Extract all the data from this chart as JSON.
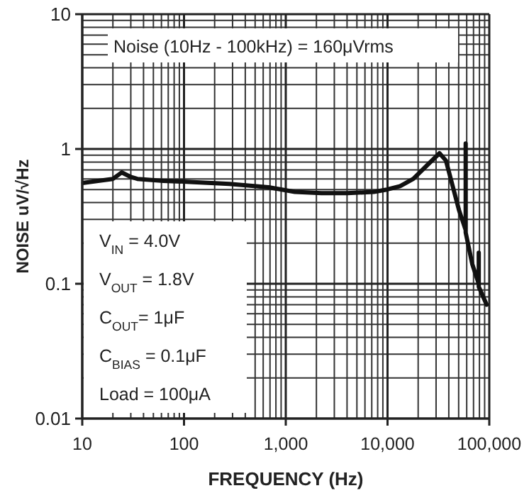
{
  "chart_data": {
    "type": "line",
    "xlabel": "FREQUENCY (Hz)",
    "ylabel": "NOISE uV/√Hz",
    "log": "xy",
    "grid": true,
    "line_style": "solid",
    "xlim": [
      10,
      100000
    ],
    "xticks": [
      {
        "value": 10,
        "label": "10"
      },
      {
        "value": 100,
        "label": "100"
      },
      {
        "value": 1000,
        "label": "1,000"
      },
      {
        "value": 10000,
        "label": "10,000"
      },
      {
        "value": 100000,
        "label": "100,000"
      }
    ],
    "ylim": [
      0.01,
      10
    ],
    "yticks": [
      0.01,
      0.1,
      1,
      10
    ],
    "series": [
      {
        "color": "#111111",
        "x": [
          10.3,
          14.3,
          20,
          24.4,
          30,
          34.8,
          63,
          114,
          279,
          679,
          1230,
          2240,
          4040,
          7330,
          9860,
          13300,
          17900,
          25500,
          32400,
          37500,
          50500,
          58600,
          58600,
          58600,
          68000,
          78800,
          78800,
          78800,
          94200
        ],
        "values": [
          0.56,
          0.58,
          0.6,
          0.67,
          0.62,
          0.6,
          0.58,
          0.57,
          0.55,
          0.52,
          0.48,
          0.47,
          0.47,
          0.48,
          0.5,
          0.53,
          0.6,
          0.78,
          0.93,
          0.82,
          0.35,
          0.25,
          1.1,
          0.24,
          0.14,
          0.1,
          0.17,
          0.095,
          0.07
        ]
      }
    ],
    "annotations": [
      "Noise (10Hz - 100kHz) = 160μVrms",
      "V$_{IN}$ = 4.0V",
      "V$_{OUT}$ = 1.8V",
      "C$_{OUT}$= 1μF",
      "C$_{BIAS}$ = 0.1μF",
      "Load = 100μA"
    ]
  }
}
